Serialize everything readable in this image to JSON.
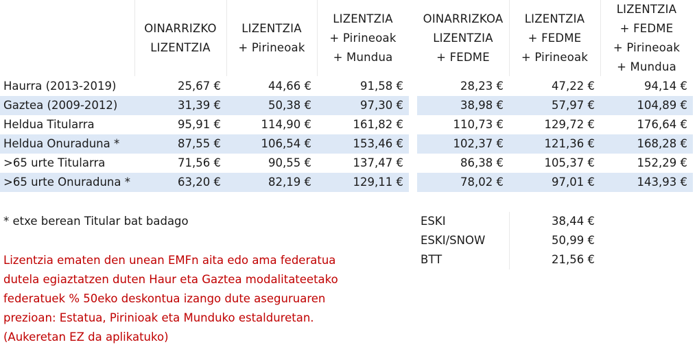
{
  "headers": [
    [
      "OINARRIZKO",
      "LIZENTZIA"
    ],
    [
      "LIZENTZIA",
      "+ Pirineoak"
    ],
    [
      "LIZENTZIA",
      "+ Pirineoak",
      "+ Mundua"
    ],
    [
      "OINARRIZKOA",
      "LIZENTZIA",
      "+ FEDME"
    ],
    [
      "LIZENTZIA",
      "+ FEDME",
      "+ Pirineoak"
    ],
    [
      "LIZENTZIA",
      "+ FEDME",
      "+ Pirineoak",
      "+ Mundua"
    ]
  ],
  "rows": [
    {
      "label": "Haurra (2013-2019)",
      "values": [
        "25,67 €",
        "44,66 €",
        "91,58 €",
        "28,23 €",
        "47,22 €",
        "94,14 €"
      ],
      "shaded": false
    },
    {
      "label": "Gaztea (2009-2012)",
      "values": [
        "31,39 €",
        "50,38 €",
        "97,30 €",
        "38,98 €",
        "57,97 €",
        "104,89 €"
      ],
      "shaded": true
    },
    {
      "label": "Heldua Titularra",
      "values": [
        "95,91 €",
        "114,90 €",
        "161,82 €",
        "110,73 €",
        "129,72 €",
        "176,64 €"
      ],
      "shaded": false
    },
    {
      "label": "Heldua Onuraduna *",
      "values": [
        "87,55 €",
        "106,54 €",
        "153,46 €",
        "102,37 €",
        "121,36 €",
        "168,28 €"
      ],
      "shaded": true
    },
    {
      "label": ">65 urte Titularra",
      "values": [
        "71,56 €",
        "90,55 €",
        "137,47 €",
        "86,38 €",
        "105,37 €",
        "152,29 €"
      ],
      "shaded": false
    },
    {
      "label": ">65 urte Onuraduna *",
      "values": [
        "63,20 €",
        "82,19 €",
        "129,11 €",
        "78,02 €",
        "97,01 €",
        "143,93 €"
      ],
      "shaded": true
    }
  ],
  "footnote": "* etxe berean Titular bat badago",
  "extras": [
    {
      "label": "ESKI",
      "value": "38,44 €"
    },
    {
      "label": "ESKI/SNOW",
      "value": "50,99 €"
    },
    {
      "label": "BTT",
      "value": "21,56 €"
    }
  ],
  "discount_lines": [
    "Lizentzia ematen den unean EMFn aita edo ama federatua",
    "dutela egiaztatzen duten Haur eta Gaztea modalitateetako",
    "federatuek % 50eko deskontua izango dute aseguruaren",
    "prezioan: Estatua, Pirinioak eta Munduko estalduretan.",
    "(Aukeretan EZ da aplikatuko)"
  ],
  "colors": {
    "row_shade": "#dde8f6",
    "note_red": "#c00000"
  }
}
